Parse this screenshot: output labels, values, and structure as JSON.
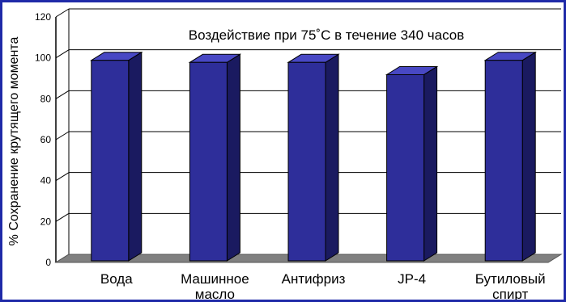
{
  "chart_data": {
    "type": "bar",
    "title": "",
    "annotation": "Воздействие при 75˚C в течение 340 часов",
    "ylabel": "% Сохранение крутящего момента",
    "xlabel": "",
    "ylim": [
      0,
      120
    ],
    "yticks": [
      0,
      20,
      40,
      60,
      80,
      100,
      120
    ],
    "categories": [
      [
        "Вода"
      ],
      [
        "Машинное",
        "масло"
      ],
      [
        "Антифриз"
      ],
      [
        "JP-4"
      ],
      [
        "Бутиловый",
        "спирт"
      ]
    ],
    "values": [
      98,
      97,
      97,
      91,
      98
    ],
    "grid": true,
    "legend": "none",
    "colors": {
      "bar_front": "#2e2e9a",
      "bar_side": "#1a1a60",
      "bar_top": "#4848c4",
      "floor": "#808080",
      "grid": "#000000",
      "border": "#1f2aa8"
    }
  }
}
